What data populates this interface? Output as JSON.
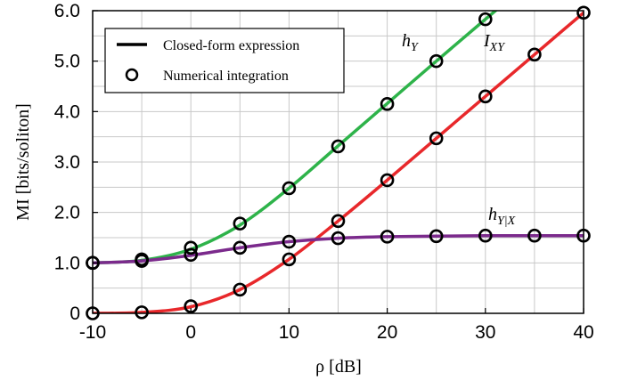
{
  "chart_data": {
    "type": "line",
    "xlabel": "ρ [dB]",
    "ylabel": "MI [bits/soliton]",
    "xlim": [
      -10,
      40
    ],
    "ylim": [
      0,
      6
    ],
    "grid": true,
    "x_ticks": [
      -10,
      0,
      10,
      20,
      30,
      40
    ],
    "x_tick_labels": [
      "-10",
      "0",
      "10",
      "20",
      "30",
      "40"
    ],
    "y_ticks": [
      0,
      1,
      2,
      3,
      4,
      5,
      6
    ],
    "y_tick_labels": [
      "0",
      "1.0",
      "2.0",
      "3.0",
      "4.0",
      "5.0",
      "6.0"
    ],
    "legend": {
      "placement": "top-left",
      "line_label": "Closed-form expression",
      "marker_label": "Numerical integration"
    },
    "series": [
      {
        "name": "h_Y",
        "label_main": "h",
        "label_sub": "Y",
        "color": "#2eb34a",
        "x": [
          -10,
          -5,
          0,
          5,
          10,
          15,
          20,
          25,
          30,
          32
        ],
        "values": [
          1.0,
          1.05,
          1.27,
          1.75,
          2.48,
          3.32,
          4.16,
          5.0,
          5.83,
          6.16
        ],
        "markers_x": [
          -10,
          -5,
          0,
          5,
          10,
          15,
          20,
          25,
          30
        ],
        "markers_y": [
          1.0,
          1.07,
          1.3,
          1.78,
          2.48,
          3.31,
          4.15,
          5.0,
          5.83
        ]
      },
      {
        "name": "I_XY",
        "label_main": "I",
        "label_sub": "XY",
        "color": "#e8282b",
        "x": [
          -10,
          -5,
          0,
          5,
          10,
          15,
          20,
          25,
          30,
          35,
          40
        ],
        "values": [
          0.0,
          0.02,
          0.13,
          0.47,
          1.07,
          1.83,
          2.64,
          3.47,
          4.3,
          5.13,
          5.96
        ],
        "markers_x": [
          -10,
          -5,
          0,
          5,
          10,
          15,
          20,
          25,
          30,
          35,
          40
        ],
        "markers_y": [
          0.0,
          0.02,
          0.14,
          0.47,
          1.07,
          1.83,
          2.64,
          3.47,
          4.3,
          5.13,
          5.96
        ]
      },
      {
        "name": "h_Y|X",
        "label_main": "h",
        "label_sub": "Y|X",
        "color": "#7b2a8c",
        "x": [
          -10,
          -5,
          0,
          5,
          10,
          15,
          20,
          25,
          30,
          35,
          40
        ],
        "values": [
          1.0,
          1.04,
          1.15,
          1.3,
          1.42,
          1.49,
          1.52,
          1.53,
          1.54,
          1.54,
          1.54
        ],
        "markers_x": [
          -10,
          -5,
          0,
          5,
          10,
          15,
          20,
          25,
          30,
          35,
          40
        ],
        "markers_y": [
          1.0,
          1.04,
          1.16,
          1.3,
          1.42,
          1.49,
          1.52,
          1.53,
          1.54,
          1.54,
          1.54
        ]
      }
    ]
  }
}
